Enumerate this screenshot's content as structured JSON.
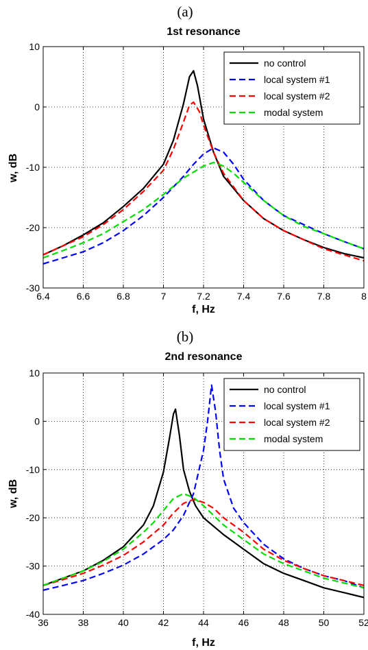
{
  "chart_data": [
    {
      "type": "line",
      "panel_label": "(a)",
      "title": "1st resonance",
      "xlabel": "f, Hz",
      "ylabel": "w, dB",
      "xlim": [
        6.4,
        8
      ],
      "ylim": [
        -30,
        10
      ],
      "xticks": [
        6.4,
        6.6,
        6.8,
        7,
        7.2,
        7.4,
        7.6,
        7.8,
        8
      ],
      "xtick_labels": [
        "6.4",
        "6.6",
        "6.8",
        "7",
        "7.2",
        "7.4",
        "7.6",
        "7.8",
        "8"
      ],
      "yticks": [
        -30,
        -20,
        -10,
        0,
        10
      ],
      "ytick_labels": [
        "-30",
        "-20",
        "-10",
        "0",
        "10"
      ],
      "grid": true,
      "legend_position": "top-right",
      "series": [
        {
          "name": "no control",
          "color": "#000000",
          "dash": "solid",
          "x": [
            6.4,
            6.5,
            6.6,
            6.7,
            6.8,
            6.9,
            7.0,
            7.05,
            7.1,
            7.13,
            7.15,
            7.17,
            7.2,
            7.25,
            7.3,
            7.4,
            7.5,
            7.6,
            7.7,
            7.8,
            7.9,
            8.0
          ],
          "y": [
            -24.5,
            -23.0,
            -21.2,
            -19.2,
            -16.5,
            -13.5,
            -9.5,
            -5.5,
            0.5,
            5.0,
            6.0,
            3.5,
            -2.0,
            -7.5,
            -11.5,
            -15.5,
            -18.5,
            -20.5,
            -22.0,
            -23.3,
            -24.3,
            -25.0
          ]
        },
        {
          "name": "local system #1",
          "color": "#0000ff",
          "dash": "dashed",
          "x": [
            6.4,
            6.5,
            6.6,
            6.7,
            6.8,
            6.9,
            7.0,
            7.1,
            7.15,
            7.2,
            7.25,
            7.3,
            7.35,
            7.4,
            7.5,
            7.6,
            7.7,
            7.8,
            7.9,
            8.0
          ],
          "y": [
            -26.0,
            -25.0,
            -24.0,
            -22.5,
            -20.5,
            -18.0,
            -15.0,
            -11.5,
            -9.5,
            -7.8,
            -6.8,
            -7.5,
            -9.5,
            -12.0,
            -15.5,
            -18.0,
            -19.5,
            -21.0,
            -22.3,
            -23.5
          ]
        },
        {
          "name": "local system #2",
          "color": "#ff0000",
          "dash": "dashed",
          "x": [
            6.4,
            6.5,
            6.6,
            6.7,
            6.8,
            6.9,
            7.0,
            7.05,
            7.1,
            7.13,
            7.15,
            7.18,
            7.2,
            7.25,
            7.3,
            7.4,
            7.5,
            7.6,
            7.7,
            7.8,
            7.9,
            8.0
          ],
          "y": [
            -24.5,
            -23.0,
            -21.5,
            -19.5,
            -17.0,
            -14.0,
            -10.5,
            -7.0,
            -2.5,
            0.3,
            0.8,
            -0.8,
            -3.0,
            -7.5,
            -11.0,
            -15.5,
            -18.5,
            -20.5,
            -22.0,
            -23.5,
            -24.5,
            -25.5
          ]
        },
        {
          "name": "modal system",
          "color": "#00dd00",
          "dash": "dashed",
          "x": [
            6.4,
            6.5,
            6.6,
            6.7,
            6.8,
            6.9,
            7.0,
            7.1,
            7.2,
            7.25,
            7.3,
            7.35,
            7.4,
            7.5,
            7.6,
            7.7,
            7.8,
            7.9,
            8.0
          ],
          "y": [
            -25.0,
            -23.8,
            -22.5,
            -21.0,
            -19.0,
            -17.0,
            -14.5,
            -11.8,
            -9.8,
            -9.2,
            -9.8,
            -11.0,
            -12.5,
            -15.5,
            -18.0,
            -19.8,
            -21.0,
            -22.3,
            -23.5
          ]
        }
      ]
    },
    {
      "type": "line",
      "panel_label": "(b)",
      "title": "2nd resonance",
      "xlabel": "f, Hz",
      "ylabel": "w, dB",
      "xlim": [
        36,
        52
      ],
      "ylim": [
        -40,
        10
      ],
      "xticks": [
        36,
        38,
        40,
        42,
        44,
        46,
        48,
        50,
        52
      ],
      "xtick_labels": [
        "36",
        "38",
        "40",
        "42",
        "44",
        "46",
        "48",
        "50",
        "52"
      ],
      "yticks": [
        -40,
        -30,
        -20,
        -10,
        0,
        10
      ],
      "ytick_labels": [
        "-40",
        "-30",
        "-20",
        "-10",
        "0",
        "10"
      ],
      "grid": true,
      "legend_position": "top-right",
      "series": [
        {
          "name": "no control",
          "color": "#000000",
          "dash": "solid",
          "x": [
            36,
            37,
            38,
            39,
            40,
            41,
            41.5,
            42,
            42.3,
            42.5,
            42.6,
            42.8,
            43,
            43.3,
            43.6,
            44,
            45,
            46,
            47,
            48,
            49,
            50,
            51,
            52
          ],
          "y": [
            -34.0,
            -32.5,
            -31.0,
            -28.8,
            -26.0,
            -21.5,
            -17.5,
            -10.5,
            -3.5,
            1.5,
            2.5,
            -3.0,
            -10.0,
            -14.5,
            -17.5,
            -20.0,
            -23.5,
            -26.5,
            -29.5,
            -31.5,
            -33.0,
            -34.5,
            -35.5,
            -36.5
          ]
        },
        {
          "name": "local system #1",
          "color": "#0000ff",
          "dash": "dashed",
          "x": [
            36,
            37,
            38,
            39,
            40,
            41,
            42,
            42.5,
            43,
            43.5,
            44,
            44.2,
            44.4,
            44.6,
            44.8,
            45,
            45.5,
            46,
            47,
            48,
            49,
            50,
            51,
            52
          ],
          "y": [
            -35.0,
            -34.0,
            -33.0,
            -31.5,
            -29.8,
            -27.5,
            -24.5,
            -22.5,
            -19.5,
            -15.0,
            -6.0,
            0.0,
            7.5,
            2.0,
            -6.0,
            -12.0,
            -18.0,
            -21.0,
            -25.5,
            -28.5,
            -30.5,
            -32.0,
            -33.0,
            -34.5
          ]
        },
        {
          "name": "local system #2",
          "color": "#ff0000",
          "dash": "dashed",
          "x": [
            36,
            37,
            38,
            39,
            40,
            41,
            42,
            42.5,
            43,
            43.5,
            44,
            44.5,
            45,
            46,
            47,
            48,
            49,
            50,
            51,
            52
          ],
          "y": [
            -34.0,
            -32.8,
            -31.5,
            -29.8,
            -27.8,
            -25.0,
            -21.5,
            -19.0,
            -17.0,
            -16.2,
            -16.8,
            -18.0,
            -20.0,
            -23.0,
            -26.5,
            -28.8,
            -30.5,
            -32.0,
            -33.0,
            -34.0
          ]
        },
        {
          "name": "modal system",
          "color": "#00dd00",
          "dash": "dashed",
          "x": [
            36,
            37,
            38,
            39,
            40,
            41,
            41.5,
            42,
            42.5,
            43,
            43.5,
            44,
            44.5,
            45,
            46,
            47,
            48,
            49,
            50,
            51,
            52
          ],
          "y": [
            -34.0,
            -32.5,
            -31.0,
            -29.0,
            -26.5,
            -23.0,
            -21.0,
            -18.5,
            -16.0,
            -15.0,
            -15.8,
            -17.5,
            -19.5,
            -21.5,
            -24.5,
            -27.5,
            -29.5,
            -31.0,
            -32.5,
            -33.5,
            -34.5
          ]
        }
      ]
    }
  ]
}
